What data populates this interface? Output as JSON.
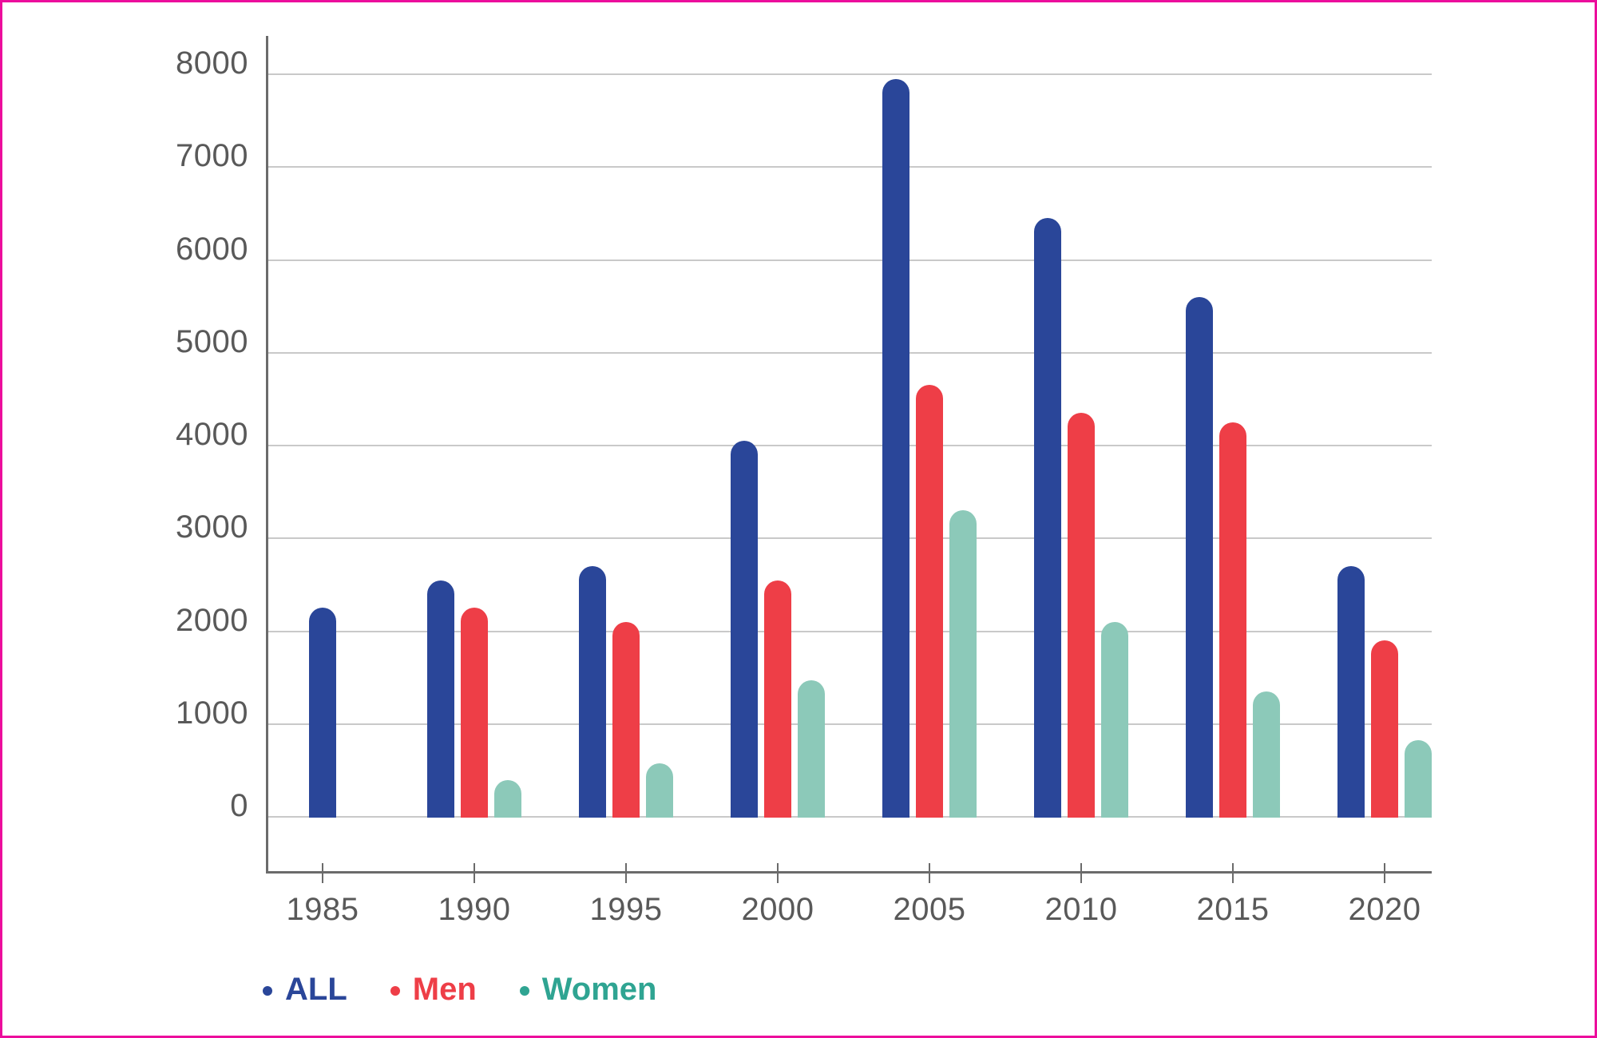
{
  "frame": {
    "background": "#FFFFFF",
    "border_color": "#EC0D9C"
  },
  "chart_data": {
    "type": "bar",
    "title": "",
    "xlabel": "",
    "ylabel": "",
    "categories": [
      "1985",
      "1990",
      "1995",
      "2000",
      "2005",
      "2010",
      "2015",
      "2020"
    ],
    "series": [
      {
        "name": "ALL",
        "color": "#2A4699",
        "values": [
          2250,
          2550,
          2700,
          4050,
          7950,
          6450,
          5600,
          2700
        ]
      },
      {
        "name": "Men",
        "color": "#EE3E47",
        "values": [
          null,
          2250,
          2100,
          2550,
          4650,
          4350,
          4250,
          1900
        ]
      },
      {
        "name": "Women",
        "color": "#8CC9B9",
        "legend_color": "#2FA492",
        "values": [
          null,
          400,
          575,
          1475,
          3300,
          2100,
          1350,
          825
        ]
      }
    ],
    "ylim": [
      0,
      8000
    ],
    "yticks": [
      0,
      1000,
      2000,
      3000,
      4000,
      5000,
      6000,
      7000,
      8000
    ],
    "y_tick_labels": [
      "0",
      "1000",
      "2000",
      "3000",
      "4000",
      "5000",
      "6000",
      "7000",
      "8000"
    ],
    "grid": true,
    "legend_position": "bottom-left",
    "axis_text_color": "#595959",
    "grid_color": "#C9C9C9",
    "spine_color": "#6B6B6B"
  },
  "legend": {
    "items": [
      {
        "label": "ALL",
        "color": "#2A4699"
      },
      {
        "label": "Men",
        "color": "#EE3E47"
      },
      {
        "label": "Women",
        "color": "#2FA492"
      }
    ]
  }
}
